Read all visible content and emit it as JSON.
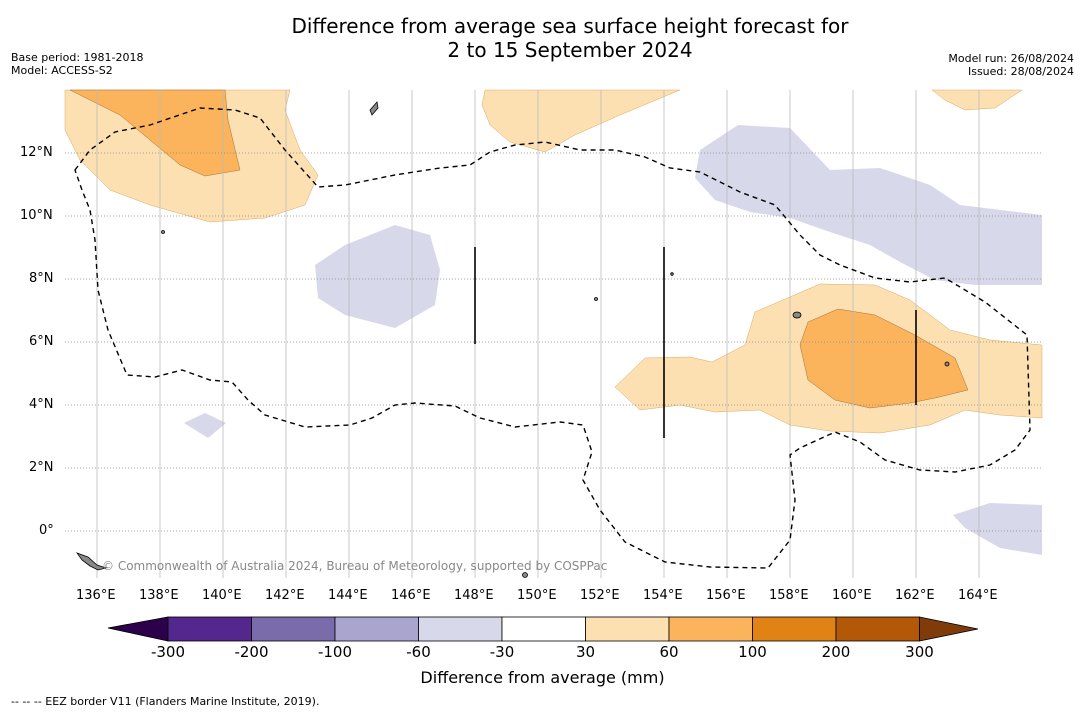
{
  "title_line1": "Difference from average sea surface height forecast for",
  "title_line2": "2 to 15 September 2024",
  "base_period": "Base period: 1981-2018",
  "model": "Model: ACCESS-S2",
  "model_run": "Model run: 26/08/2024",
  "issued": "Issued: 28/08/2024",
  "credit": "© Commonwealth of Australia 2024, Bureau of Meteorology, supported by COSPPac",
  "footnote": "-- -- -- EEZ border V11 (Flanders Marine Institute, 2019).",
  "lon_labels": [
    "136°E",
    "138°E",
    "140°E",
    "142°E",
    "144°E",
    "146°E",
    "148°E",
    "150°E",
    "152°E",
    "154°E",
    "156°E",
    "158°E",
    "160°E",
    "162°E",
    "164°E"
  ],
  "lat_labels": [
    "12°N",
    "10°N",
    "8°N",
    "6°N",
    "4°N",
    "2°N",
    "0°"
  ],
  "colorbar": {
    "title": "Difference from average (mm)",
    "labels": [
      "-300",
      "-200",
      "-100",
      "-60",
      "-30",
      "30",
      "60",
      "100",
      "200",
      "300"
    ],
    "colors": [
      "#54278f",
      "#7a6baa",
      "#aaa5cf",
      "#d7d8ea",
      "#ffffff",
      "#fde0b2",
      "#fbb35c",
      "#e08214",
      "#b35806"
    ],
    "under_color": "#2d004b",
    "over_color": "#7f3b08"
  },
  "legend_items": {
    "negative_fill": "#d7d8ea",
    "positive_light": "#fde0b2",
    "positive_medium": "#fbb35c"
  }
}
